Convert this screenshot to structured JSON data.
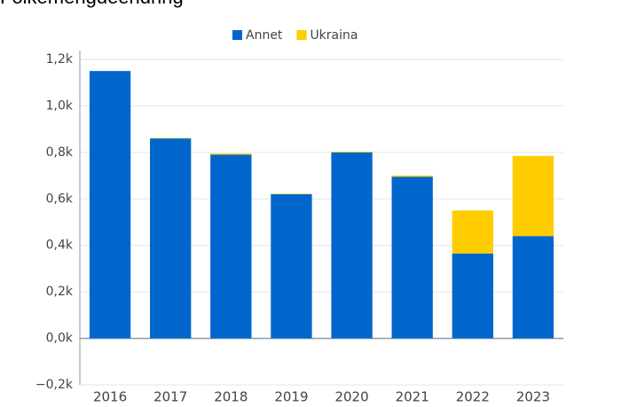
{
  "chart_data": {
    "type": "stacked_bar",
    "title": "Folkemengdeendring",
    "categories": [
      "2016",
      "2017",
      "2018",
      "2019",
      "2020",
      "2021",
      "2022",
      "2023"
    ],
    "series": [
      {
        "name": "Annet",
        "color": "#0066cc",
        "values": [
          1150,
          860,
          790,
          620,
          800,
          695,
          365,
          440
        ]
      },
      {
        "name": "Ukraina",
        "color": "#ffcc00",
        "values": [
          0,
          2,
          5,
          2,
          3,
          5,
          185,
          345
        ]
      }
    ],
    "ylim": [
      -200,
      1200
    ],
    "yticks": [
      {
        "value": -200,
        "label": "−0,2k"
      },
      {
        "value": 0,
        "label": "0,0k"
      },
      {
        "value": 200,
        "label": "0,2k"
      },
      {
        "value": 400,
        "label": "0,4k"
      },
      {
        "value": 600,
        "label": "0,6k"
      },
      {
        "value": 800,
        "label": "0,8k"
      },
      {
        "value": 1000,
        "label": "1,0k"
      },
      {
        "value": 1200,
        "label": "1,2k"
      }
    ],
    "grid": true,
    "legend": "top"
  }
}
